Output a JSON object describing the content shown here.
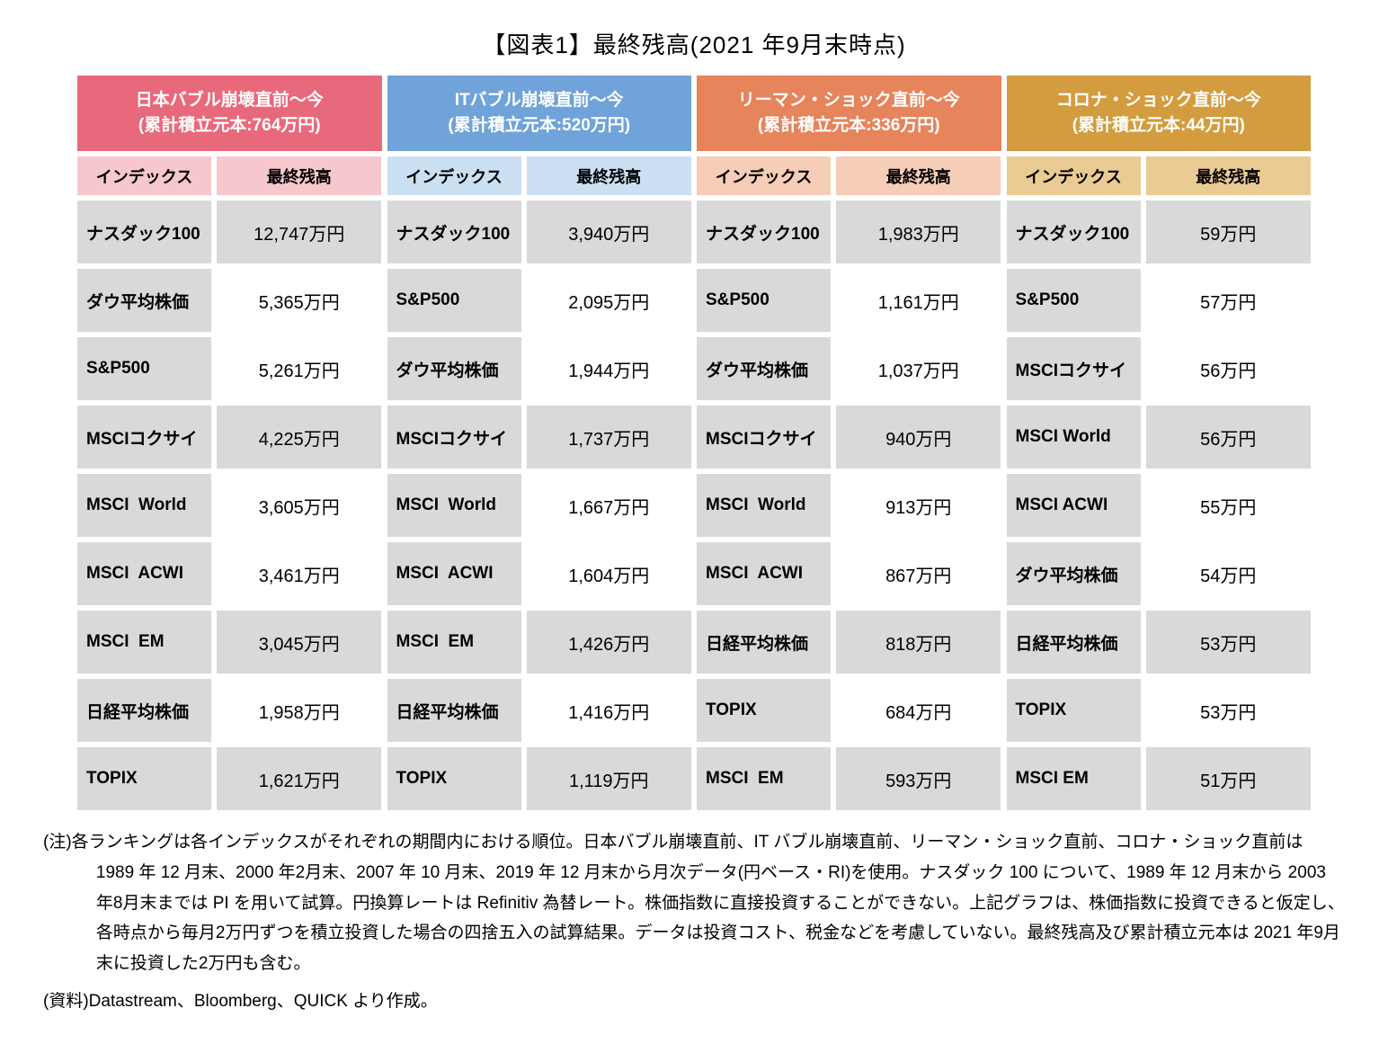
{
  "title": "【図表1】最終残高(2021 年9月末時点)",
  "colors": {
    "group_headers": [
      "#E8697B",
      "#6FA3D9",
      "#E6845C",
      "#D39C3F"
    ],
    "group_subheaders": [
      "#F6C7CD",
      "#CCE0F4",
      "#F6CDB6",
      "#EACB93"
    ],
    "cell_gray": "#D9D9D9",
    "grid_white": "#FFFFFF"
  },
  "chart_data": {
    "type": "table",
    "title": "【図表1】最終残高(2021 年9月末時点)",
    "groups": [
      {
        "period_label": "日本バブル崩壊直前〜今",
        "principal_label": "(累計積立元本:764万円)",
        "columns": [
          "インデックス",
          "最終残高"
        ],
        "rows": [
          [
            "ナスダック100",
            "12,747万円"
          ],
          [
            "ダウ平均株価",
            "5,365万円"
          ],
          [
            "S&P500",
            "5,261万円"
          ],
          [
            "MSCIコクサイ",
            "4,225万円"
          ],
          [
            "MSCI  World",
            "3,605万円"
          ],
          [
            "MSCI  ACWI",
            "3,461万円"
          ],
          [
            "MSCI  EM",
            "3,045万円"
          ],
          [
            "日経平均株価",
            "1,958万円"
          ],
          [
            "TOPIX",
            "1,621万円"
          ]
        ]
      },
      {
        "period_label": "ITバブル崩壊直前〜今",
        "principal_label": "(累計積立元本:520万円)",
        "columns": [
          "インデックス",
          "最終残高"
        ],
        "rows": [
          [
            "ナスダック100",
            "3,940万円"
          ],
          [
            "S&P500",
            "2,095万円"
          ],
          [
            "ダウ平均株価",
            "1,944万円"
          ],
          [
            "MSCIコクサイ",
            "1,737万円"
          ],
          [
            "MSCI  World",
            "1,667万円"
          ],
          [
            "MSCI  ACWI",
            "1,604万円"
          ],
          [
            "MSCI  EM",
            "1,426万円"
          ],
          [
            "日経平均株価",
            "1,416万円"
          ],
          [
            "TOPIX",
            "1,119万円"
          ]
        ]
      },
      {
        "period_label": "リーマン・ショック直前〜今",
        "principal_label": "(累計積立元本:336万円)",
        "columns": [
          "インデックス",
          "最終残高"
        ],
        "rows": [
          [
            "ナスダック100",
            "1,983万円"
          ],
          [
            "S&P500",
            "1,161万円"
          ],
          [
            "ダウ平均株価",
            "1,037万円"
          ],
          [
            "MSCIコクサイ",
            "940万円"
          ],
          [
            "MSCI  World",
            "913万円"
          ],
          [
            "MSCI  ACWI",
            "867万円"
          ],
          [
            "日経平均株価",
            "818万円"
          ],
          [
            "TOPIX",
            "684万円"
          ],
          [
            "MSCI  EM",
            "593万円"
          ]
        ]
      },
      {
        "period_label": "コロナ・ショック直前〜今",
        "principal_label": "(累計積立元本:44万円)",
        "columns": [
          "インデックス",
          "最終残高"
        ],
        "rows": [
          [
            "ナスダック100",
            "59万円"
          ],
          [
            "S&P500",
            "57万円"
          ],
          [
            "MSCIコクサイ",
            "56万円"
          ],
          [
            "MSCI World",
            "56万円"
          ],
          [
            "MSCI ACWI",
            "55万円"
          ],
          [
            "ダウ平均株価",
            "54万円"
          ],
          [
            "日経平均株価",
            "53万円"
          ],
          [
            "TOPIX",
            "53万円"
          ],
          [
            "MSCI EM",
            "51万円"
          ]
        ]
      }
    ]
  },
  "notes": {
    "note": "(注)各ランキングは各インデックスがそれぞれの期間内における順位。日本バブル崩壊直前、IT バブル崩壊直前、リーマン・ショック直前、コロナ・ショック直前は 1989 年 12 月末、2000 年2月末、2007 年 10 月末、2019 年 12 月末から月次データ(円ベース・RI)を使用。ナスダック 100 について、1989 年 12 月末から 2003 年8月末までは PI を用いて試算。円換算レートは Refinitiv 為替レート。株価指数に直接投資することができない。上記グラフは、株価指数に投資できると仮定し、各時点から毎月2万円ずつを積立投資した場合の四捨五入の試算結果。データは投資コスト、税金などを考慮していない。最終残高及び累計積立元本は 2021 年9月末に投資した2万円も含む。",
    "source": "(資料)Datastream、Bloomberg、QUICK より作成。"
  }
}
